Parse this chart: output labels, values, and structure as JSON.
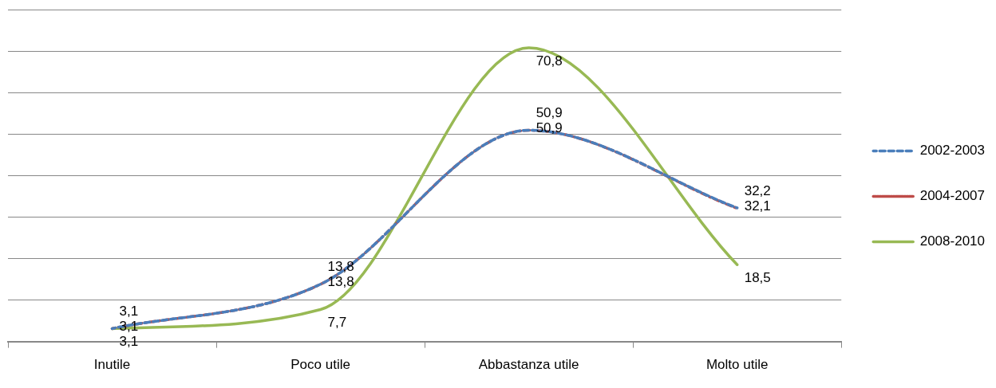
{
  "chart_data": {
    "type": "line",
    "categories": [
      "Inutile",
      "Poco utile",
      "Abbastanza utile",
      "Molto utile"
    ],
    "series": [
      {
        "name": "2002-2003",
        "color": "#4a7ebb",
        "line_style": "dashed",
        "values": [
          3.1,
          13.8,
          50.9,
          32.2
        ],
        "value_labels": [
          "3,1",
          "13,8",
          "50,9",
          "32,2"
        ]
      },
      {
        "name": "2004-2007",
        "color": "#be4b48",
        "line_style": "dashdot",
        "values": [
          3.1,
          13.8,
          50.9,
          32.1
        ],
        "value_labels": [
          "3,1",
          "13,8",
          "50,9",
          "32,1"
        ]
      },
      {
        "name": "2008-2010",
        "color": "#98b954",
        "line_style": "solid",
        "values": [
          3.1,
          7.7,
          70.8,
          18.5
        ],
        "value_labels": [
          "3,1",
          "7,7",
          "70,8",
          "18,5"
        ]
      }
    ],
    "tick_labels": "x",
    "grid": "y",
    "legend": "right",
    "marker": "none"
  }
}
